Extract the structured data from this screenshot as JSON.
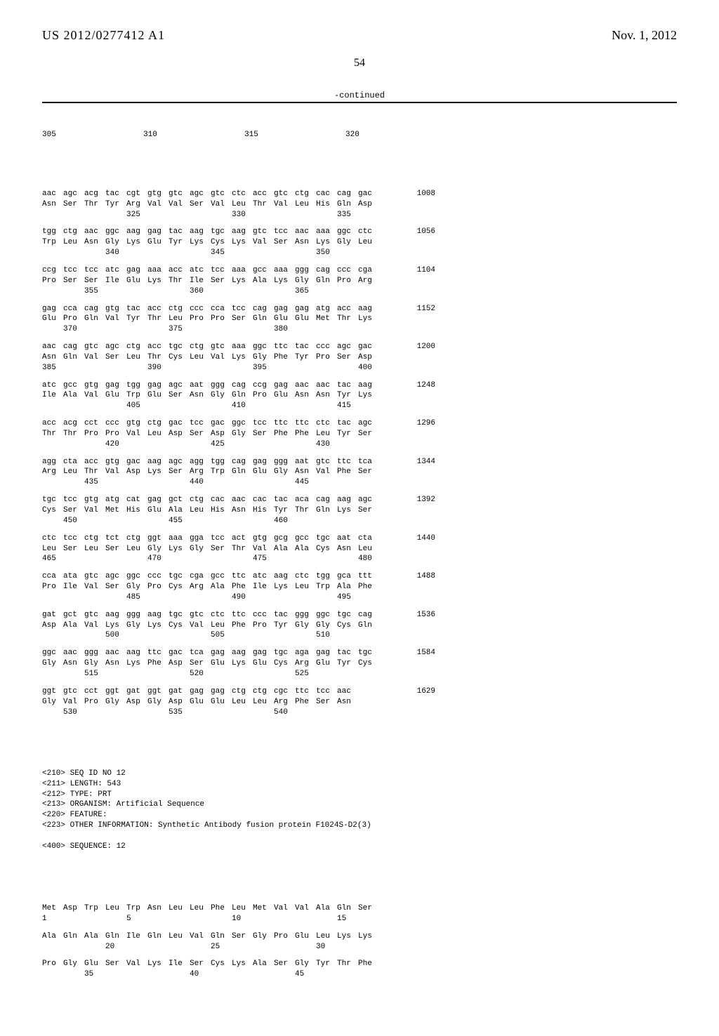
{
  "header": {
    "pubnum": "US 2012/0277412 A1",
    "pubdate": "Nov. 1, 2012",
    "pagenum": "54",
    "continued": "-continued"
  },
  "top_positions": [
    "305",
    "",
    "",
    "310",
    "",
    "",
    "315",
    "",
    "",
    "320"
  ],
  "rows": [
    {
      "nuc": [
        "aac",
        "agc",
        "acg",
        "tac",
        "cgt",
        "gtg",
        "gtc",
        "agc",
        "gtc",
        "ctc",
        "acc",
        "gtc",
        "ctg",
        "cac",
        "cag",
        "gac"
      ],
      "aa": [
        "Asn",
        "Ser",
        "Thr",
        "Tyr",
        "Arg",
        "Val",
        "Val",
        "Ser",
        "Val",
        "Leu",
        "Thr",
        "Val",
        "Leu",
        "His",
        "Gln",
        "Asp"
      ],
      "pos": [
        "",
        "",
        "",
        "",
        "325",
        "",
        "",
        "",
        "",
        "330",
        "",
        "",
        "",
        "",
        "335",
        ""
      ],
      "bp": "1008"
    },
    {
      "nuc": [
        "tgg",
        "ctg",
        "aac",
        "ggc",
        "aag",
        "gag",
        "tac",
        "aag",
        "tgc",
        "aag",
        "gtc",
        "tcc",
        "aac",
        "aaa",
        "ggc",
        "ctc"
      ],
      "aa": [
        "Trp",
        "Leu",
        "Asn",
        "Gly",
        "Lys",
        "Glu",
        "Tyr",
        "Lys",
        "Cys",
        "Lys",
        "Val",
        "Ser",
        "Asn",
        "Lys",
        "Gly",
        "Leu"
      ],
      "pos": [
        "",
        "",
        "",
        "340",
        "",
        "",
        "",
        "",
        "345",
        "",
        "",
        "",
        "",
        "350",
        "",
        ""
      ],
      "bp": "1056"
    },
    {
      "nuc": [
        "ccg",
        "tcc",
        "tcc",
        "atc",
        "gag",
        "aaa",
        "acc",
        "atc",
        "tcc",
        "aaa",
        "gcc",
        "aaa",
        "ggg",
        "cag",
        "ccc",
        "cga"
      ],
      "aa": [
        "Pro",
        "Ser",
        "Ser",
        "Ile",
        "Glu",
        "Lys",
        "Thr",
        "Ile",
        "Ser",
        "Lys",
        "Ala",
        "Lys",
        "Gly",
        "Gln",
        "Pro",
        "Arg"
      ],
      "pos": [
        "",
        "",
        "355",
        "",
        "",
        "",
        "",
        "360",
        "",
        "",
        "",
        "",
        "365",
        "",
        "",
        ""
      ],
      "bp": "1104"
    },
    {
      "nuc": [
        "gag",
        "cca",
        "cag",
        "gtg",
        "tac",
        "acc",
        "ctg",
        "ccc",
        "cca",
        "tcc",
        "cag",
        "gag",
        "gag",
        "atg",
        "acc",
        "aag"
      ],
      "aa": [
        "Glu",
        "Pro",
        "Gln",
        "Val",
        "Tyr",
        "Thr",
        "Leu",
        "Pro",
        "Pro",
        "Ser",
        "Gln",
        "Glu",
        "Glu",
        "Met",
        "Thr",
        "Lys"
      ],
      "pos": [
        "",
        "370",
        "",
        "",
        "",
        "",
        "375",
        "",
        "",
        "",
        "",
        "380",
        "",
        "",
        "",
        ""
      ],
      "bp": "1152"
    },
    {
      "nuc": [
        "aac",
        "cag",
        "gtc",
        "agc",
        "ctg",
        "acc",
        "tgc",
        "ctg",
        "gtc",
        "aaa",
        "ggc",
        "ttc",
        "tac",
        "ccc",
        "agc",
        "gac"
      ],
      "aa": [
        "Asn",
        "Gln",
        "Val",
        "Ser",
        "Leu",
        "Thr",
        "Cys",
        "Leu",
        "Val",
        "Lys",
        "Gly",
        "Phe",
        "Tyr",
        "Pro",
        "Ser",
        "Asp"
      ],
      "pos": [
        "385",
        "",
        "",
        "",
        "",
        "390",
        "",
        "",
        "",
        "",
        "395",
        "",
        "",
        "",
        "",
        "400"
      ],
      "bp": "1200"
    },
    {
      "nuc": [
        "atc",
        "gcc",
        "gtg",
        "gag",
        "tgg",
        "gag",
        "agc",
        "aat",
        "ggg",
        "cag",
        "ccg",
        "gag",
        "aac",
        "aac",
        "tac",
        "aag"
      ],
      "aa": [
        "Ile",
        "Ala",
        "Val",
        "Glu",
        "Trp",
        "Glu",
        "Ser",
        "Asn",
        "Gly",
        "Gln",
        "Pro",
        "Glu",
        "Asn",
        "Asn",
        "Tyr",
        "Lys"
      ],
      "pos": [
        "",
        "",
        "",
        "",
        "405",
        "",
        "",
        "",
        "",
        "410",
        "",
        "",
        "",
        "",
        "415",
        ""
      ],
      "bp": "1248"
    },
    {
      "nuc": [
        "acc",
        "acg",
        "cct",
        "ccc",
        "gtg",
        "ctg",
        "gac",
        "tcc",
        "gac",
        "ggc",
        "tcc",
        "ttc",
        "ttc",
        "ctc",
        "tac",
        "agc"
      ],
      "aa": [
        "Thr",
        "Thr",
        "Pro",
        "Pro",
        "Val",
        "Leu",
        "Asp",
        "Ser",
        "Asp",
        "Gly",
        "Ser",
        "Phe",
        "Phe",
        "Leu",
        "Tyr",
        "Ser"
      ],
      "pos": [
        "",
        "",
        "",
        "420",
        "",
        "",
        "",
        "",
        "425",
        "",
        "",
        "",
        "",
        "430",
        "",
        ""
      ],
      "bp": "1296"
    },
    {
      "nuc": [
        "agg",
        "cta",
        "acc",
        "gtg",
        "gac",
        "aag",
        "agc",
        "agg",
        "tgg",
        "cag",
        "gag",
        "ggg",
        "aat",
        "gtc",
        "ttc",
        "tca"
      ],
      "aa": [
        "Arg",
        "Leu",
        "Thr",
        "Val",
        "Asp",
        "Lys",
        "Ser",
        "Arg",
        "Trp",
        "Gln",
        "Glu",
        "Gly",
        "Asn",
        "Val",
        "Phe",
        "Ser"
      ],
      "pos": [
        "",
        "",
        "435",
        "",
        "",
        "",
        "",
        "440",
        "",
        "",
        "",
        "",
        "445",
        "",
        "",
        ""
      ],
      "bp": "1344"
    },
    {
      "nuc": [
        "tgc",
        "tcc",
        "gtg",
        "atg",
        "cat",
        "gag",
        "gct",
        "ctg",
        "cac",
        "aac",
        "cac",
        "tac",
        "aca",
        "cag",
        "aag",
        "agc"
      ],
      "aa": [
        "Cys",
        "Ser",
        "Val",
        "Met",
        "His",
        "Glu",
        "Ala",
        "Leu",
        "His",
        "Asn",
        "His",
        "Tyr",
        "Thr",
        "Gln",
        "Lys",
        "Ser"
      ],
      "pos": [
        "",
        "450",
        "",
        "",
        "",
        "",
        "455",
        "",
        "",
        "",
        "",
        "460",
        "",
        "",
        "",
        ""
      ],
      "bp": "1392"
    },
    {
      "nuc": [
        "ctc",
        "tcc",
        "ctg",
        "tct",
        "ctg",
        "ggt",
        "aaa",
        "gga",
        "tcc",
        "act",
        "gtg",
        "gcg",
        "gcc",
        "tgc",
        "aat",
        "cta"
      ],
      "aa": [
        "Leu",
        "Ser",
        "Leu",
        "Ser",
        "Leu",
        "Gly",
        "Lys",
        "Gly",
        "Ser",
        "Thr",
        "Val",
        "Ala",
        "Ala",
        "Cys",
        "Asn",
        "Leu"
      ],
      "pos": [
        "465",
        "",
        "",
        "",
        "",
        "470",
        "",
        "",
        "",
        "",
        "475",
        "",
        "",
        "",
        "",
        "480"
      ],
      "bp": "1440"
    },
    {
      "nuc": [
        "cca",
        "ata",
        "gtc",
        "agc",
        "ggc",
        "ccc",
        "tgc",
        "cga",
        "gcc",
        "ttc",
        "atc",
        "aag",
        "ctc",
        "tgg",
        "gca",
        "ttt"
      ],
      "aa": [
        "Pro",
        "Ile",
        "Val",
        "Ser",
        "Gly",
        "Pro",
        "Cys",
        "Arg",
        "Ala",
        "Phe",
        "Ile",
        "Lys",
        "Leu",
        "Trp",
        "Ala",
        "Phe"
      ],
      "pos": [
        "",
        "",
        "",
        "",
        "485",
        "",
        "",
        "",
        "",
        "490",
        "",
        "",
        "",
        "",
        "495",
        ""
      ],
      "bp": "1488"
    },
    {
      "nuc": [
        "gat",
        "gct",
        "gtc",
        "aag",
        "ggg",
        "aag",
        "tgc",
        "gtc",
        "ctc",
        "ttc",
        "ccc",
        "tac",
        "ggg",
        "ggc",
        "tgc",
        "cag"
      ],
      "aa": [
        "Asp",
        "Ala",
        "Val",
        "Lys",
        "Gly",
        "Lys",
        "Cys",
        "Val",
        "Leu",
        "Phe",
        "Pro",
        "Tyr",
        "Gly",
        "Gly",
        "Cys",
        "Gln"
      ],
      "pos": [
        "",
        "",
        "",
        "500",
        "",
        "",
        "",
        "",
        "505",
        "",
        "",
        "",
        "",
        "510",
        "",
        ""
      ],
      "bp": "1536"
    },
    {
      "nuc": [
        "ggc",
        "aac",
        "ggg",
        "aac",
        "aag",
        "ttc",
        "gac",
        "tca",
        "gag",
        "aag",
        "gag",
        "tgc",
        "aga",
        "gag",
        "tac",
        "tgc"
      ],
      "aa": [
        "Gly",
        "Asn",
        "Gly",
        "Asn",
        "Lys",
        "Phe",
        "Asp",
        "Ser",
        "Glu",
        "Lys",
        "Glu",
        "Cys",
        "Arg",
        "Glu",
        "Tyr",
        "Cys"
      ],
      "pos": [
        "",
        "",
        "515",
        "",
        "",
        "",
        "",
        "520",
        "",
        "",
        "",
        "",
        "525",
        "",
        "",
        ""
      ],
      "bp": "1584"
    },
    {
      "nuc": [
        "ggt",
        "gtc",
        "cct",
        "ggt",
        "gat",
        "ggt",
        "gat",
        "gag",
        "gag",
        "ctg",
        "ctg",
        "cgc",
        "ttc",
        "tcc",
        "aac",
        ""
      ],
      "aa": [
        "Gly",
        "Val",
        "Pro",
        "Gly",
        "Asp",
        "Gly",
        "Asp",
        "Glu",
        "Glu",
        "Leu",
        "Leu",
        "Arg",
        "Phe",
        "Ser",
        "Asn",
        ""
      ],
      "pos": [
        "",
        "530",
        "",
        "",
        "",
        "",
        "535",
        "",
        "",
        "",
        "",
        "540",
        "",
        "",
        "",
        ""
      ],
      "bp": "1629"
    }
  ],
  "meta": [
    "<210> SEQ ID NO 12",
    "<211> LENGTH: 543",
    "<212> TYPE: PRT",
    "<213> ORGANISM: Artificial Sequence",
    "<220> FEATURE:",
    "<223> OTHER INFORMATION: Synthetic Antibody fusion protein F1024S-D2(3)",
    "",
    "<400> SEQUENCE: 12"
  ],
  "prot_rows": [
    {
      "aa": [
        "Met",
        "Asp",
        "Trp",
        "Leu",
        "Trp",
        "Asn",
        "Leu",
        "Leu",
        "Phe",
        "Leu",
        "Met",
        "Val",
        "Val",
        "Ala",
        "Gln",
        "Ser"
      ],
      "pos": [
        "1",
        "",
        "",
        "",
        "5",
        "",
        "",
        "",
        "",
        "10",
        "",
        "",
        "",
        "",
        "15",
        ""
      ]
    },
    {
      "aa": [
        "Ala",
        "Gln",
        "Ala",
        "Gln",
        "Ile",
        "Gln",
        "Leu",
        "Val",
        "Gln",
        "Ser",
        "Gly",
        "Pro",
        "Glu",
        "Leu",
        "Lys",
        "Lys"
      ],
      "pos": [
        "",
        "",
        "",
        "20",
        "",
        "",
        "",
        "",
        "25",
        "",
        "",
        "",
        "",
        "30",
        "",
        ""
      ]
    },
    {
      "aa": [
        "Pro",
        "Gly",
        "Glu",
        "Ser",
        "Val",
        "Lys",
        "Ile",
        "Ser",
        "Cys",
        "Lys",
        "Ala",
        "Ser",
        "Gly",
        "Tyr",
        "Thr",
        "Phe"
      ],
      "pos": [
        "",
        "",
        "35",
        "",
        "",
        "",
        "",
        "40",
        "",
        "",
        "",
        "",
        "45",
        "",
        "",
        ""
      ]
    }
  ]
}
